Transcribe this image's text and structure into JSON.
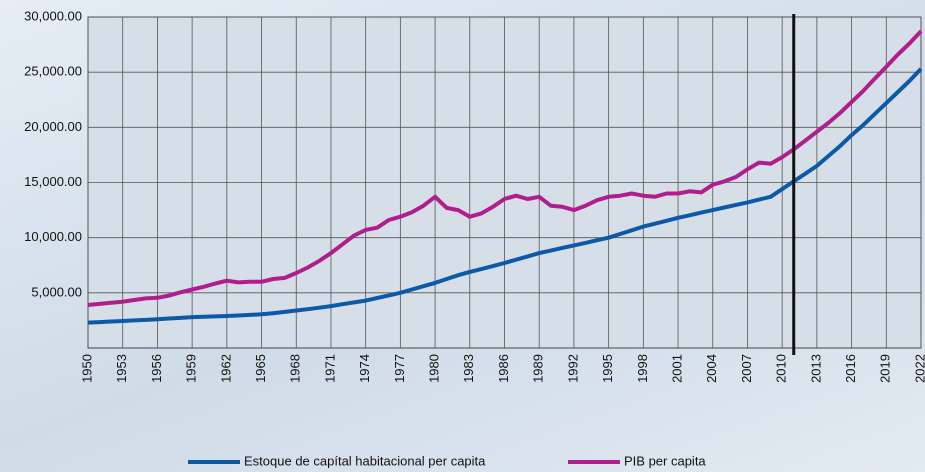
{
  "chart_data": {
    "type": "line",
    "x": [
      1950,
      1951,
      1952,
      1953,
      1954,
      1955,
      1956,
      1957,
      1958,
      1959,
      1960,
      1961,
      1962,
      1963,
      1964,
      1965,
      1966,
      1967,
      1968,
      1969,
      1970,
      1971,
      1972,
      1973,
      1974,
      1975,
      1976,
      1977,
      1978,
      1979,
      1980,
      1981,
      1982,
      1983,
      1984,
      1985,
      1986,
      1987,
      1988,
      1989,
      1990,
      1991,
      1992,
      1993,
      1994,
      1995,
      1996,
      1997,
      1998,
      1999,
      2000,
      2001,
      2002,
      2003,
      2004,
      2005,
      2006,
      2007,
      2008,
      2009,
      2010,
      2011,
      2012,
      2013,
      2014,
      2015,
      2016,
      2017,
      2018,
      2019,
      2020,
      2021,
      2022
    ],
    "series": [
      {
        "name": "Estoque de capítal habitacional per capita",
        "color": "#0b5aa8",
        "values": [
          2300,
          2350,
          2400,
          2450,
          2500,
          2550,
          2600,
          2670,
          2730,
          2800,
          2830,
          2860,
          2900,
          2950,
          3000,
          3050,
          3150,
          3270,
          3400,
          3520,
          3650,
          3800,
          3970,
          4130,
          4300,
          4530,
          4770,
          5000,
          5300,
          5600,
          5900,
          6250,
          6600,
          6900,
          7150,
          7420,
          7700,
          8000,
          8300,
          8600,
          8830,
          9070,
          9300,
          9530,
          9770,
          10000,
          10330,
          10670,
          11000,
          11270,
          11530,
          11800,
          12030,
          12270,
          12500,
          12730,
          12970,
          13200,
          13450,
          13700,
          14400,
          15100,
          15800,
          16500,
          17400,
          18300,
          19300,
          20200,
          21200,
          22200,
          23200,
          24200,
          25300
        ]
      },
      {
        "name": "PIB per capita",
        "color": "#b01e8e",
        "values": [
          3900,
          4000,
          4100,
          4200,
          4350,
          4500,
          4550,
          4750,
          5050,
          5300,
          5550,
          5850,
          6100,
          5950,
          6000,
          6000,
          6250,
          6350,
          6800,
          7300,
          7900,
          8600,
          9400,
          10200,
          10700,
          10900,
          11600,
          11900,
          12300,
          12900,
          13700,
          12700,
          12500,
          11900,
          12200,
          12800,
          13500,
          13800,
          13500,
          13700,
          12900,
          12800,
          12500,
          12900,
          13400,
          13700,
          13800,
          14000,
          13800,
          13700,
          14000,
          14000,
          14200,
          14100,
          14800,
          15100,
          15500,
          16200,
          16800,
          16700,
          17300,
          18000,
          18800,
          19600,
          20400,
          21300,
          22300,
          23300,
          24400,
          25500,
          26600,
          27600,
          28700
        ]
      }
    ],
    "xlim": [
      1950,
      2022
    ],
    "xticks": [
      1950,
      1953,
      1956,
      1959,
      1962,
      1965,
      1968,
      1971,
      1974,
      1977,
      1980,
      1983,
      1986,
      1989,
      1992,
      1995,
      1998,
      2001,
      2004,
      2007,
      2010,
      2013,
      2016,
      2019,
      2022
    ],
    "ylim": [
      0,
      30000
    ],
    "yticks": [
      {
        "value": 5000,
        "label": "5,000.00"
      },
      {
        "value": 10000,
        "label": "10,000.00"
      },
      {
        "value": 15000,
        "label": "15,000.00"
      },
      {
        "value": 20000,
        "label": "20,000.00"
      },
      {
        "value": 25000,
        "label": "25,000.00"
      },
      {
        "value": 30000,
        "label": "30,000.00"
      }
    ],
    "vline": 2011,
    "grid": true,
    "legend": "bottom"
  }
}
